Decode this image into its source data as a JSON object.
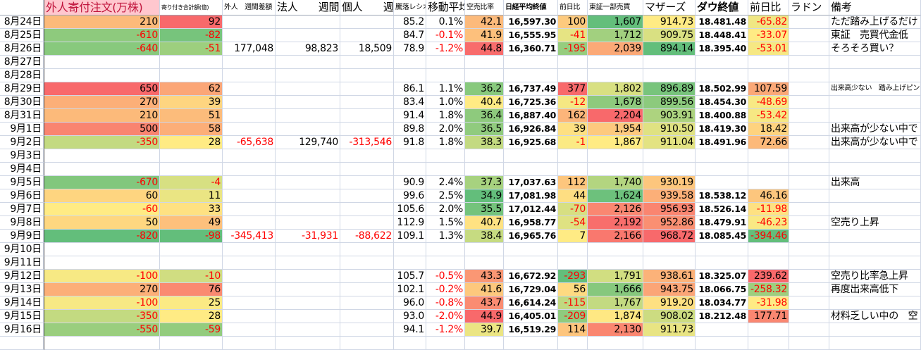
{
  "headers": [
    "",
    "外人寄付注文(万株)",
    "寄り付き合計額(億)",
    "外人　週間差額",
    "法人　　週間",
    "個人　　週間",
    "騰落レシオ",
    "移動平均",
    "空売比率",
    "日経平均終値",
    "前日比",
    "東証一部売買",
    "マザーズ",
    "ダウ終値",
    "前日比",
    "ラドン",
    "備考"
  ],
  "color_scale": {
    "low": "#63BE7B",
    "mid": "#FFEB84",
    "high": "#F8696B"
  },
  "colored_columns": [
    1,
    2,
    8,
    10,
    11,
    12,
    14
  ],
  "rows": [
    [
      "8月24日",
      "210",
      "92",
      "",
      "",
      "",
      "85.2",
      "0.1%",
      "42.1",
      "16,597.30",
      "100",
      "1,607",
      "914.73",
      "18.481.48",
      "-65.82",
      "",
      "ただ踏み上げるだけ"
    ],
    [
      "8月25日",
      "-610",
      "-82",
      "",
      "",
      "",
      "84.7",
      "-0.1%",
      "41.9",
      "16,555.95",
      "-41",
      "1,712",
      "909.75",
      "18.448.41",
      "-33.07",
      "",
      "東証　売買代金低"
    ],
    [
      "8月26日",
      "-640",
      "-51",
      "177,048",
      "98,823",
      "18,509",
      "78.9",
      "-1.2%",
      "44.8",
      "16,360.71",
      "-195",
      "2,039",
      "894.14",
      "18.395.40",
      "-53.01",
      "",
      "そろそろ買い？"
    ],
    [
      "8月27日",
      "",
      "",
      "",
      "",
      "",
      "",
      "",
      "",
      "",
      "",
      "",
      "",
      "",
      "",
      "",
      ""
    ],
    [
      "8月28日",
      "",
      "",
      "",
      "",
      "",
      "",
      "",
      "",
      "",
      "",
      "",
      "",
      "",
      "",
      "",
      ""
    ],
    [
      "8月29日",
      "650",
      "62",
      "",
      "",
      "",
      "86.1",
      "1.1%",
      "36.2",
      "16,737.49",
      "377",
      "1,802",
      "896.89",
      "18.502.99",
      "107.59",
      "",
      "出来高少ない　踏み上げピン"
    ],
    [
      "8月30日",
      "270",
      "39",
      "",
      "",
      "",
      "83.4",
      "1.0%",
      "40.4",
      "16,725.36",
      "-12",
      "1,678",
      "899.56",
      "18.454.30",
      "-48.69",
      "",
      ""
    ],
    [
      "8月31日",
      "210",
      "51",
      "",
      "",
      "",
      "91.4",
      "1.8%",
      "36.4",
      "16,887.40",
      "162",
      "2,204",
      "903.91",
      "18.400.88",
      "-53.42",
      "",
      ""
    ],
    [
      "9月1日",
      "500",
      "58",
      "",
      "",
      "",
      "89.8",
      "2.0%",
      "36.5",
      "16,926.84",
      "39",
      "1,954",
      "910.50",
      "18.419.30",
      "18.42",
      "",
      "出来高が少ない中で"
    ],
    [
      "9月2日",
      "-350",
      "28",
      "-65,638",
      "129,740",
      "-313,546",
      "91.8",
      "1.8%",
      "38.3",
      "16,925.68",
      "-1",
      "1,867",
      "911.04",
      "18.491.96",
      "72.66",
      "",
      "出来高が少ない中で"
    ],
    [
      "9月3日",
      "",
      "",
      "",
      "",
      "",
      "",
      "",
      "",
      "",
      "",
      "",
      "",
      "",
      "",
      "",
      ""
    ],
    [
      "9月4日",
      "",
      "",
      "",
      "",
      "",
      "",
      "",
      "",
      "",
      "",
      "",
      "",
      "",
      "",
      "",
      ""
    ],
    [
      "9月5日",
      "-670",
      "-4",
      "",
      "",
      "",
      "90.9",
      "2.4%",
      "37.3",
      "17,037.63",
      "112",
      "1,740",
      "930.19",
      "",
      "",
      "",
      "出来高"
    ],
    [
      "9月6日",
      "60",
      "11",
      "",
      "",
      "",
      "99.6",
      "2.5%",
      "34.9",
      "17,081.98",
      "44",
      "1,624",
      "939.58",
      "18.538.12",
      "46.16",
      "",
      ""
    ],
    [
      "9月7日",
      "-60",
      "33",
      "",
      "",
      "",
      "105.6",
      "2.0%",
      "35.5",
      "17,012.44",
      "-70",
      "2,126",
      "956.93",
      "18.526.14",
      "-11.98",
      "",
      ""
    ],
    [
      "9月8日",
      "50",
      "49",
      "",
      "",
      "",
      "112.9",
      "1.5%",
      "40.7",
      "16,958.77",
      "-54",
      "2,192",
      "952.86",
      "18.479.91",
      "-46.23",
      "",
      "空売り上昇"
    ],
    [
      "9月9日",
      "-820",
      "-98",
      "-345,413",
      "-31,931",
      "-88,622",
      "109.1",
      "1.3%",
      "38.4",
      "16,965.76",
      "7",
      "2,166",
      "968.72",
      "18.085.45",
      "-394.46",
      "",
      ""
    ],
    [
      "9月10日",
      "",
      "",
      "",
      "",
      "",
      "",
      "",
      "",
      "",
      "",
      "",
      "",
      "",
      "",
      "",
      ""
    ],
    [
      "9月11日",
      "",
      "",
      "",
      "",
      "",
      "",
      "",
      "",
      "",
      "",
      "",
      "",
      "",
      "",
      "",
      ""
    ],
    [
      "9月12日",
      "-100",
      "-10",
      "",
      "",
      "",
      "105.7",
      "-0.5%",
      "43.3",
      "16,672.92",
      "-293",
      "1,791",
      "938.61",
      "18.325.07",
      "239.62",
      "",
      "空売り比率急上昇"
    ],
    [
      "9月13日",
      "270",
      "76",
      "",
      "",
      "",
      "102.1",
      "-0.2%",
      "41.6",
      "16,729.04",
      "56",
      "1,666",
      "943.75",
      "18.066.75",
      "-258.32",
      "",
      "再度出来高低下"
    ],
    [
      "9月14日",
      "-100",
      "25",
      "",
      "",
      "",
      "96.0",
      "-0.8%",
      "43.7",
      "16,614.24",
      "-115",
      "1,767",
      "919.20",
      "18.034.77",
      "-31.98",
      "",
      ""
    ],
    [
      "9月15日",
      "-350",
      "28",
      "",
      "",
      "",
      "93.0",
      "-2.0%",
      "44.9",
      "16,405.01",
      "-209",
      "1,874",
      "908.02",
      "18.212.48",
      "177.71",
      "",
      "材料乏しい中の　空"
    ],
    [
      "9月16日",
      "-550",
      "-59",
      "",
      "",
      "",
      "94.1",
      "-1.2%",
      "39.7",
      "16,519.29",
      "114",
      "2,130",
      "911.73",
      "",
      "",
      "",
      ""
    ],
    [
      "",
      "",
      "",
      "",
      "",
      "",
      "",
      "",
      "",
      "",
      "",
      "",
      "",
      "",
      "",
      "",
      ""
    ]
  ]
}
